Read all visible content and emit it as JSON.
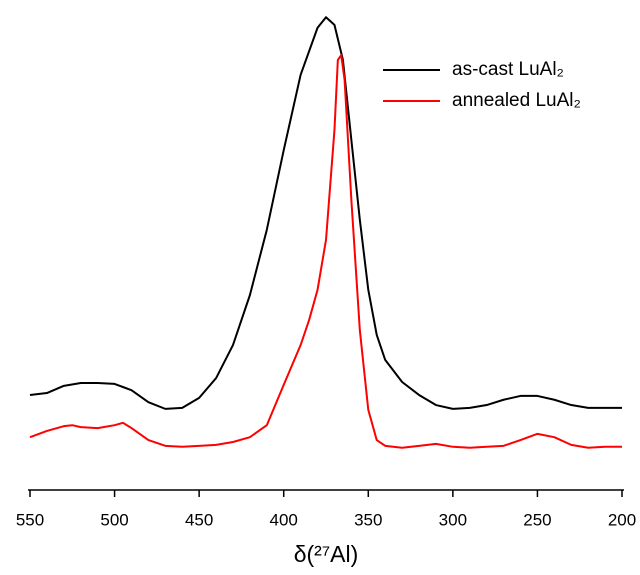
{
  "chart_data": {
    "type": "line",
    "x_label": "δ(²⁷Al)",
    "xlim": [
      550,
      200
    ],
    "xticks": [
      550,
      500,
      450,
      400,
      350,
      300,
      250,
      200
    ],
    "ylim": [
      0,
      100
    ],
    "legend": "upper right",
    "series": [
      {
        "name": "as-cast LuAl₂",
        "color": "#000000",
        "x": [
          550,
          540,
          530,
          520,
          510,
          500,
          490,
          480,
          470,
          460,
          450,
          440,
          430,
          420,
          410,
          400,
          390,
          380,
          375,
          370,
          365,
          360,
          355,
          350,
          345,
          340,
          330,
          320,
          310,
          300,
          290,
          280,
          270,
          260,
          250,
          240,
          230,
          220,
          210,
          200
        ],
        "values": [
          19.8,
          20.2,
          21.7,
          22.3,
          22.3,
          22.1,
          20.8,
          18.3,
          16.9,
          17.1,
          19.2,
          23.3,
          30.2,
          40.6,
          54.2,
          70.8,
          86.5,
          96.3,
          98.5,
          96.9,
          89.6,
          72.9,
          56.3,
          41.7,
          32.3,
          27.1,
          22.5,
          19.8,
          17.7,
          16.9,
          17.1,
          17.7,
          18.8,
          19.6,
          19.6,
          18.8,
          17.7,
          17.1,
          17.1,
          17.1
        ]
      },
      {
        "name": "annealed LuAl₂",
        "color": "#ff0000",
        "x": [
          550,
          540,
          530,
          525,
          520,
          510,
          500,
          495,
          490,
          480,
          470,
          460,
          450,
          440,
          430,
          420,
          410,
          400,
          390,
          385,
          380,
          375,
          370,
          368,
          366,
          364,
          360,
          355,
          350,
          345,
          340,
          330,
          320,
          310,
          300,
          290,
          280,
          270,
          260,
          250,
          240,
          230,
          220,
          210,
          200
        ],
        "values": [
          11.0,
          12.3,
          13.3,
          13.5,
          13.1,
          12.9,
          13.5,
          14.0,
          12.9,
          10.4,
          9.2,
          9.0,
          9.2,
          9.4,
          10.0,
          11.0,
          13.5,
          21.9,
          30.2,
          35.4,
          41.7,
          52.1,
          75.0,
          89.6,
          90.6,
          85.4,
          60.4,
          33.3,
          16.7,
          10.4,
          9.2,
          8.8,
          9.2,
          9.6,
          9.0,
          8.8,
          9.0,
          9.2,
          10.4,
          11.7,
          11.0,
          9.4,
          8.8,
          9.0,
          9.0
        ]
      }
    ]
  }
}
